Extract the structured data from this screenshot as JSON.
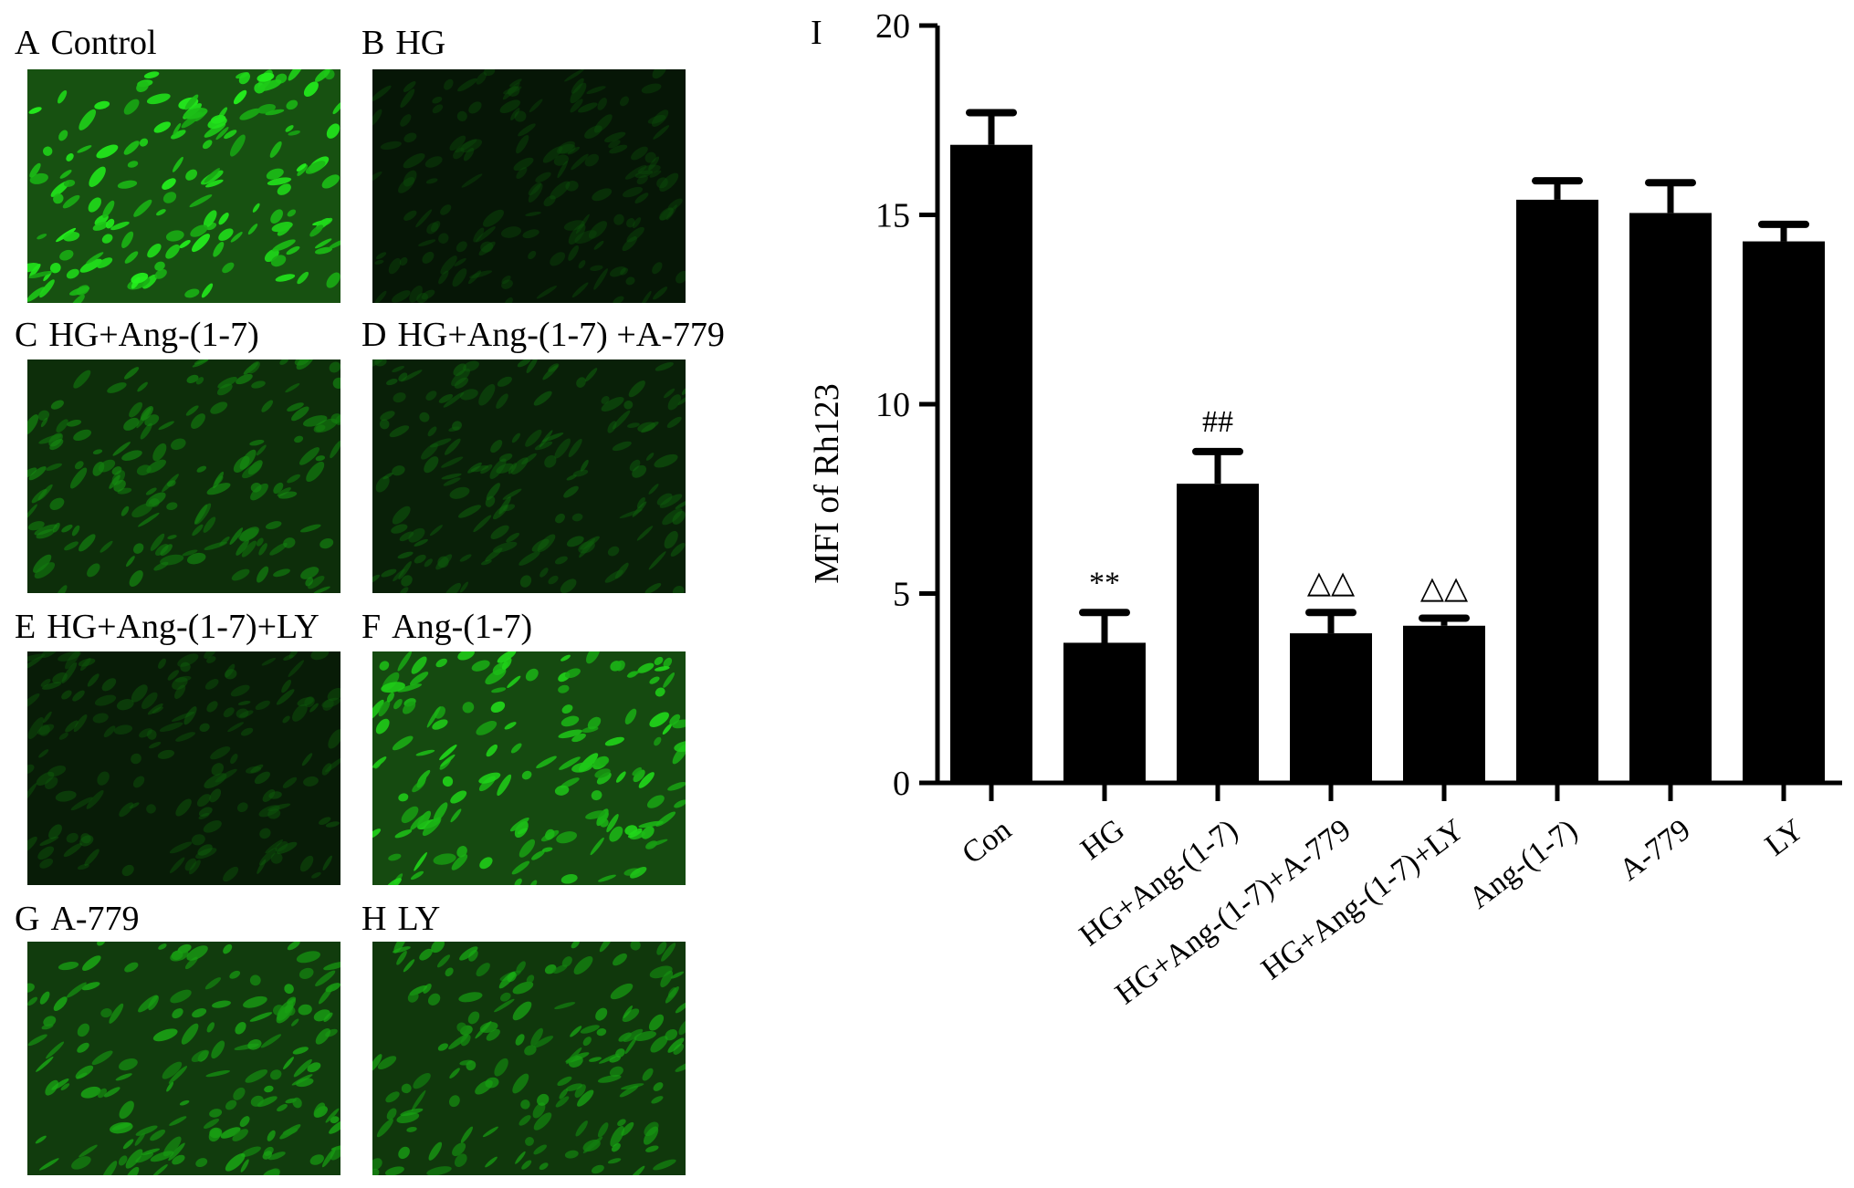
{
  "panels": [
    {
      "letter": "A",
      "title": "Control",
      "brightness": 0.95
    },
    {
      "letter": "B",
      "title": "HG",
      "brightness": 0.12
    },
    {
      "letter": "C",
      "title": "HG+Ang-(1-7)",
      "brightness": 0.45
    },
    {
      "letter": "D",
      "title": "HG+Ang-(1-7) +A-779",
      "brightness": 0.25
    },
    {
      "letter": "E",
      "title": "HG+Ang-(1-7)+LY",
      "brightness": 0.2
    },
    {
      "letter": "F",
      "title": "Ang-(1-7)",
      "brightness": 0.85
    },
    {
      "letter": "G",
      "title": "A-779",
      "brightness": 0.65
    },
    {
      "letter": "H",
      "title": "LY",
      "brightness": 0.6
    }
  ],
  "chart_data": {
    "type": "bar",
    "panel_letter": "I",
    "ylabel": "MFI of Rh123",
    "ylim": [
      0,
      20
    ],
    "yticks": [
      0,
      5,
      10,
      15,
      20
    ],
    "categories": [
      "Con",
      "HG",
      "HG+Ang-(1-7)",
      "HG+Ang-(1-7)+A-779",
      "HG+Ang-(1-7)+LY",
      "Ang-(1-7)",
      "A-779",
      "LY"
    ],
    "values": [
      16.85,
      3.7,
      7.9,
      3.95,
      4.15,
      15.4,
      15.05,
      14.3
    ],
    "errors": [
      0.85,
      0.8,
      0.85,
      0.55,
      0.2,
      0.5,
      0.8,
      0.45
    ],
    "annotations": [
      "",
      "**",
      "##",
      "△△",
      "△△",
      "",
      "",
      ""
    ],
    "bar_color": "#000000",
    "grid": false
  }
}
